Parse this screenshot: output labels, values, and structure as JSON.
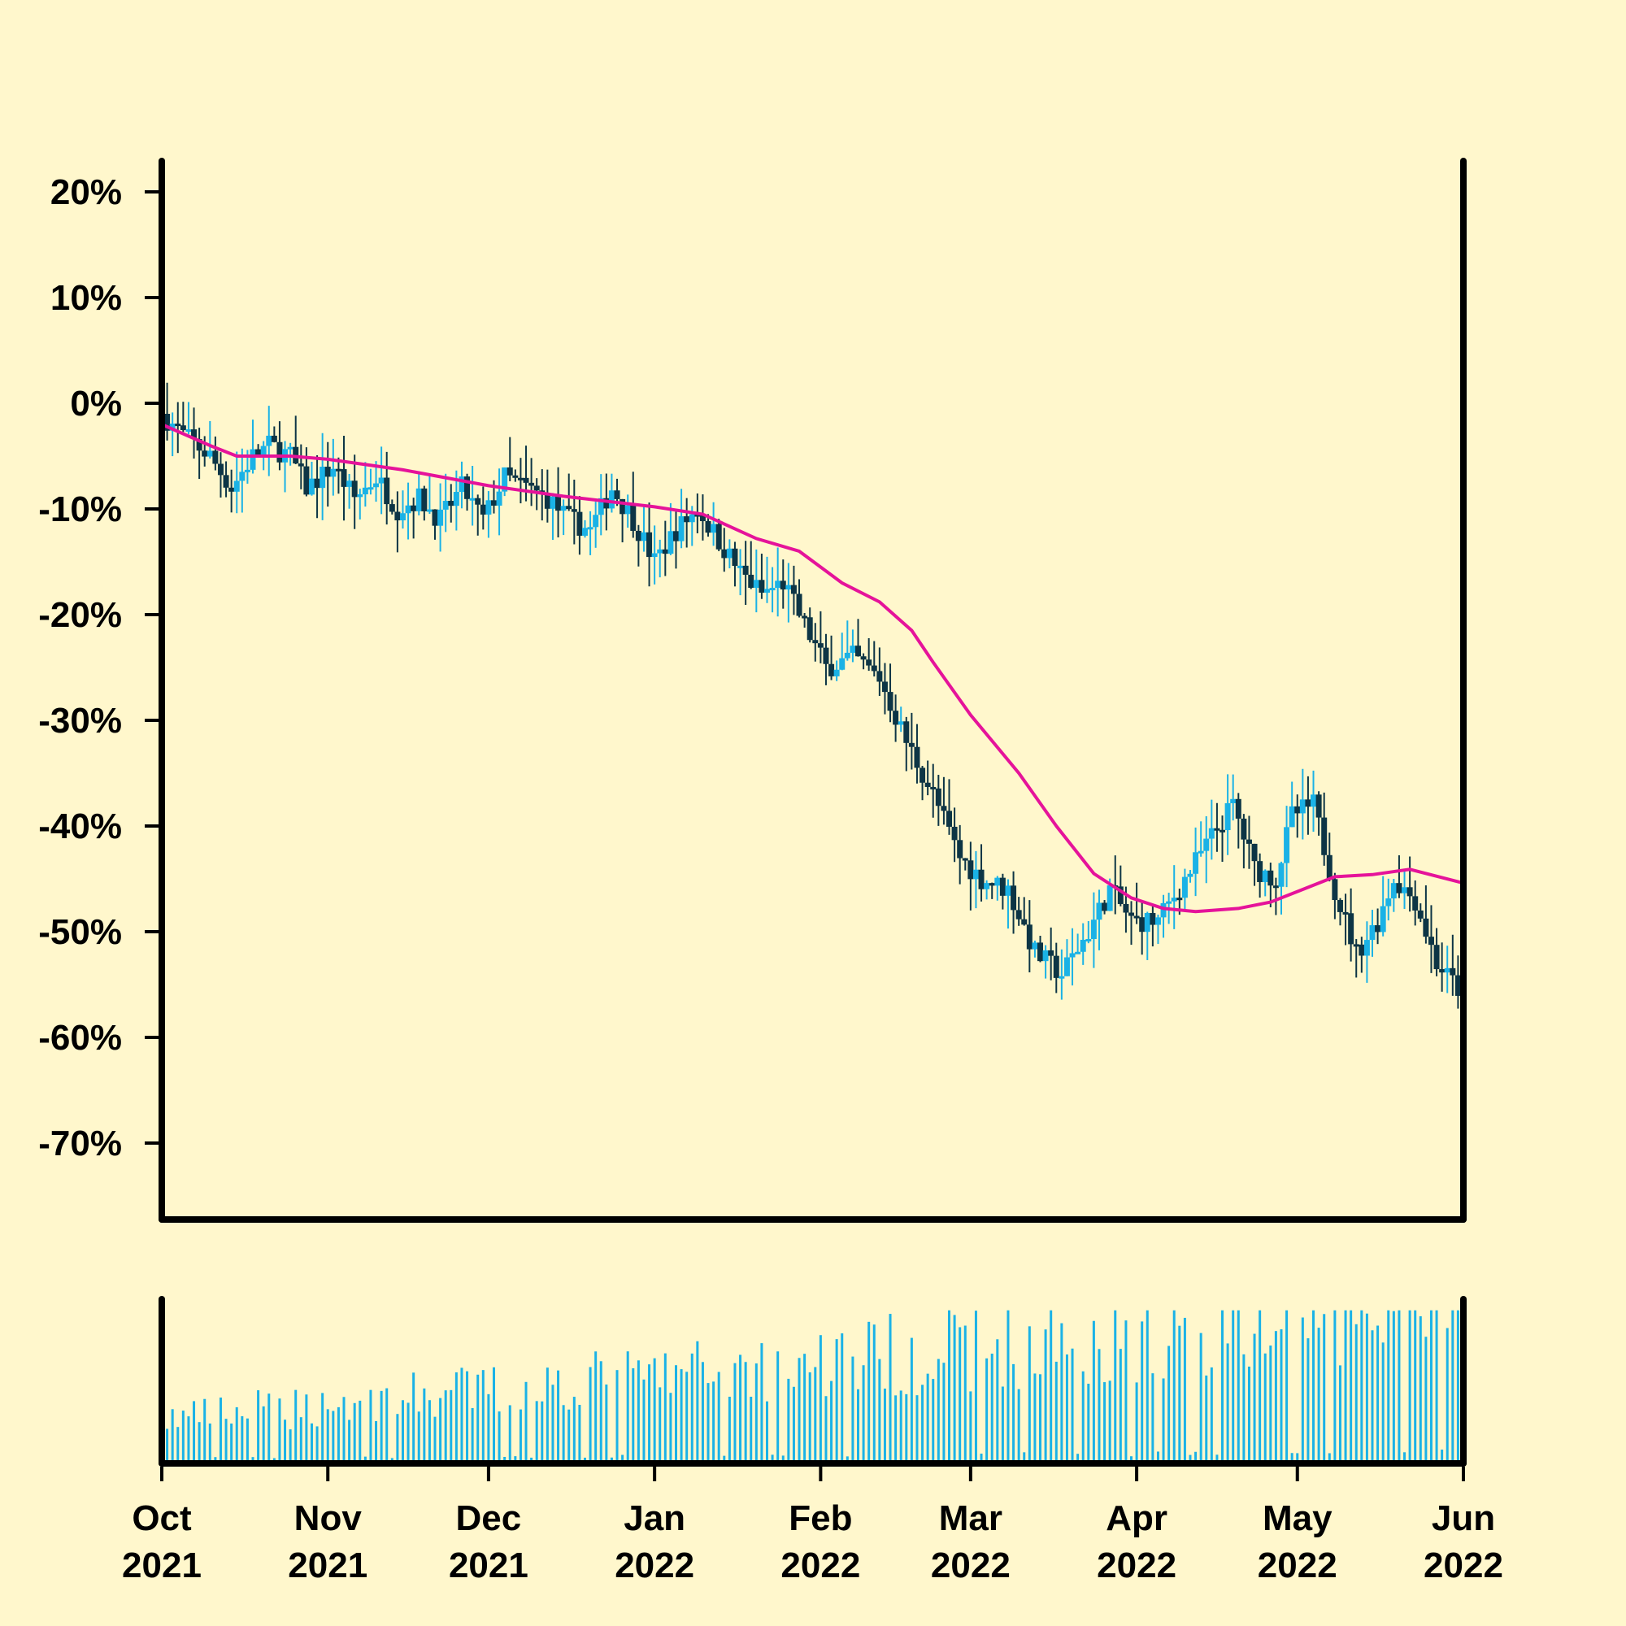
{
  "chart_data": {
    "type": "candlestick",
    "title": "",
    "xlabel": "",
    "ylabel": "",
    "ylim": [
      -76,
      23
    ],
    "y_tick_labels": [
      "20%",
      "10%",
      "0%",
      "-10%",
      "-20%",
      "-30%",
      "-40%",
      "-50%",
      "-60%",
      "-70%"
    ],
    "y_ticks": [
      20,
      10,
      0,
      -10,
      -20,
      -30,
      -40,
      -50,
      -60,
      -70
    ],
    "x_range": [
      "2021-10-01",
      "2022-06-01"
    ],
    "x_tick_labels": [
      {
        "month": "Oct",
        "year": "2021",
        "date": "2021-10-01"
      },
      {
        "month": "Nov",
        "year": "2021",
        "date": "2021-11-01"
      },
      {
        "month": "Dec",
        "year": "2021",
        "date": "2021-12-01"
      },
      {
        "month": "Jan",
        "year": "2022",
        "date": "2022-01-01"
      },
      {
        "month": "Feb",
        "year": "2022",
        "date": "2022-02-01"
      },
      {
        "month": "Mar",
        "year": "2022",
        "date": "2022-03-01"
      },
      {
        "month": "Apr",
        "year": "2022",
        "date": "2022-04-01"
      },
      {
        "month": "May",
        "year": "2022",
        "date": "2022-05-01"
      },
      {
        "month": "Jun",
        "year": "2022",
        "date": "2022-06-01"
      }
    ],
    "price_path": [
      [
        "2021-10-01",
        -1
      ],
      [
        "2021-10-05",
        -3
      ],
      [
        "2021-10-10",
        -5
      ],
      [
        "2021-10-14",
        -8
      ],
      [
        "2021-10-18",
        -5
      ],
      [
        "2021-10-21",
        -4
      ],
      [
        "2021-10-25",
        -5
      ],
      [
        "2021-10-28",
        -8
      ],
      [
        "2021-11-02",
        -6
      ],
      [
        "2021-11-06",
        -9
      ],
      [
        "2021-11-10",
        -7
      ],
      [
        "2021-11-14",
        -10
      ],
      [
        "2021-11-18",
        -9
      ],
      [
        "2021-11-22",
        -11
      ],
      [
        "2021-11-26",
        -8
      ],
      [
        "2021-11-30",
        -11
      ],
      [
        "2021-12-04",
        -7
      ],
      [
        "2021-12-08",
        -8
      ],
      [
        "2021-12-12",
        -9
      ],
      [
        "2021-12-16",
        -11
      ],
      [
        "2021-12-20",
        -12
      ],
      [
        "2021-12-24",
        -8
      ],
      [
        "2021-12-28",
        -11
      ],
      [
        "2022-01-01",
        -15
      ],
      [
        "2022-01-05",
        -12
      ],
      [
        "2022-01-09",
        -10
      ],
      [
        "2022-01-13",
        -13
      ],
      [
        "2022-01-17",
        -16
      ],
      [
        "2022-01-21",
        -18
      ],
      [
        "2022-01-25",
        -17
      ],
      [
        "2022-01-29",
        -21
      ],
      [
        "2022-02-02",
        -25
      ],
      [
        "2022-02-07",
        -24
      ],
      [
        "2022-02-12",
        -26
      ],
      [
        "2022-02-17",
        -32
      ],
      [
        "2022-02-22",
        -37
      ],
      [
        "2022-02-27",
        -43
      ],
      [
        "2022-03-03",
        -45
      ],
      [
        "2022-03-08",
        -46
      ],
      [
        "2022-03-13",
        -52
      ],
      [
        "2022-03-18",
        -54
      ],
      [
        "2022-03-23",
        -50
      ],
      [
        "2022-03-27",
        -46
      ],
      [
        "2022-03-31",
        -49
      ],
      [
        "2022-04-05",
        -49
      ],
      [
        "2022-04-10",
        -45
      ],
      [
        "2022-04-15",
        -41
      ],
      [
        "2022-04-19",
        -38
      ],
      [
        "2022-04-23",
        -44
      ],
      [
        "2022-04-27",
        -45
      ],
      [
        "2022-04-30",
        -39
      ],
      [
        "2022-05-04",
        -38
      ],
      [
        "2022-05-08",
        -46
      ],
      [
        "2022-05-12",
        -52
      ],
      [
        "2022-05-16",
        -49
      ],
      [
        "2022-05-19",
        -45
      ],
      [
        "2022-05-23",
        -47
      ],
      [
        "2022-05-27",
        -53
      ],
      [
        "2022-06-01",
        -56
      ]
    ],
    "moving_average": [
      [
        "2021-10-01",
        -2
      ],
      [
        "2021-10-10",
        -4
      ],
      [
        "2021-10-15",
        -5
      ],
      [
        "2021-10-25",
        -5
      ],
      [
        "2021-11-01",
        -5.3
      ],
      [
        "2021-11-15",
        -6.3
      ],
      [
        "2021-12-01",
        -7.8
      ],
      [
        "2021-12-15",
        -8.8
      ],
      [
        "2022-01-01",
        -9.8
      ],
      [
        "2022-01-10",
        -10.5
      ],
      [
        "2022-01-20",
        -12.8
      ],
      [
        "2022-01-28",
        -14
      ],
      [
        "2022-02-05",
        -17
      ],
      [
        "2022-02-12",
        -18.8
      ],
      [
        "2022-02-18",
        -21.5
      ],
      [
        "2022-02-22",
        -24.5
      ],
      [
        "2022-03-01",
        -29.5
      ],
      [
        "2022-03-10",
        -35
      ],
      [
        "2022-03-17",
        -40
      ],
      [
        "2022-03-24",
        -44.5
      ],
      [
        "2022-03-31",
        -46.8
      ],
      [
        "2022-04-06",
        -47.8
      ],
      [
        "2022-04-12",
        -48.1
      ],
      [
        "2022-04-20",
        -47.8
      ],
      [
        "2022-04-26",
        -47.2
      ],
      [
        "2022-05-01",
        -46.2
      ],
      [
        "2022-05-08",
        -44.8
      ],
      [
        "2022-05-15",
        -44.6
      ],
      [
        "2022-05-22",
        -44.1
      ],
      [
        "2022-06-01",
        -45.4
      ]
    ],
    "colors": {
      "background": "#fff7cc",
      "up": "#1ab2e6",
      "down": "#0d3545",
      "moving_average": "#e5139a",
      "volume": "#1ab2e6",
      "axis": "#000000"
    },
    "legend": "none",
    "grid": false
  }
}
